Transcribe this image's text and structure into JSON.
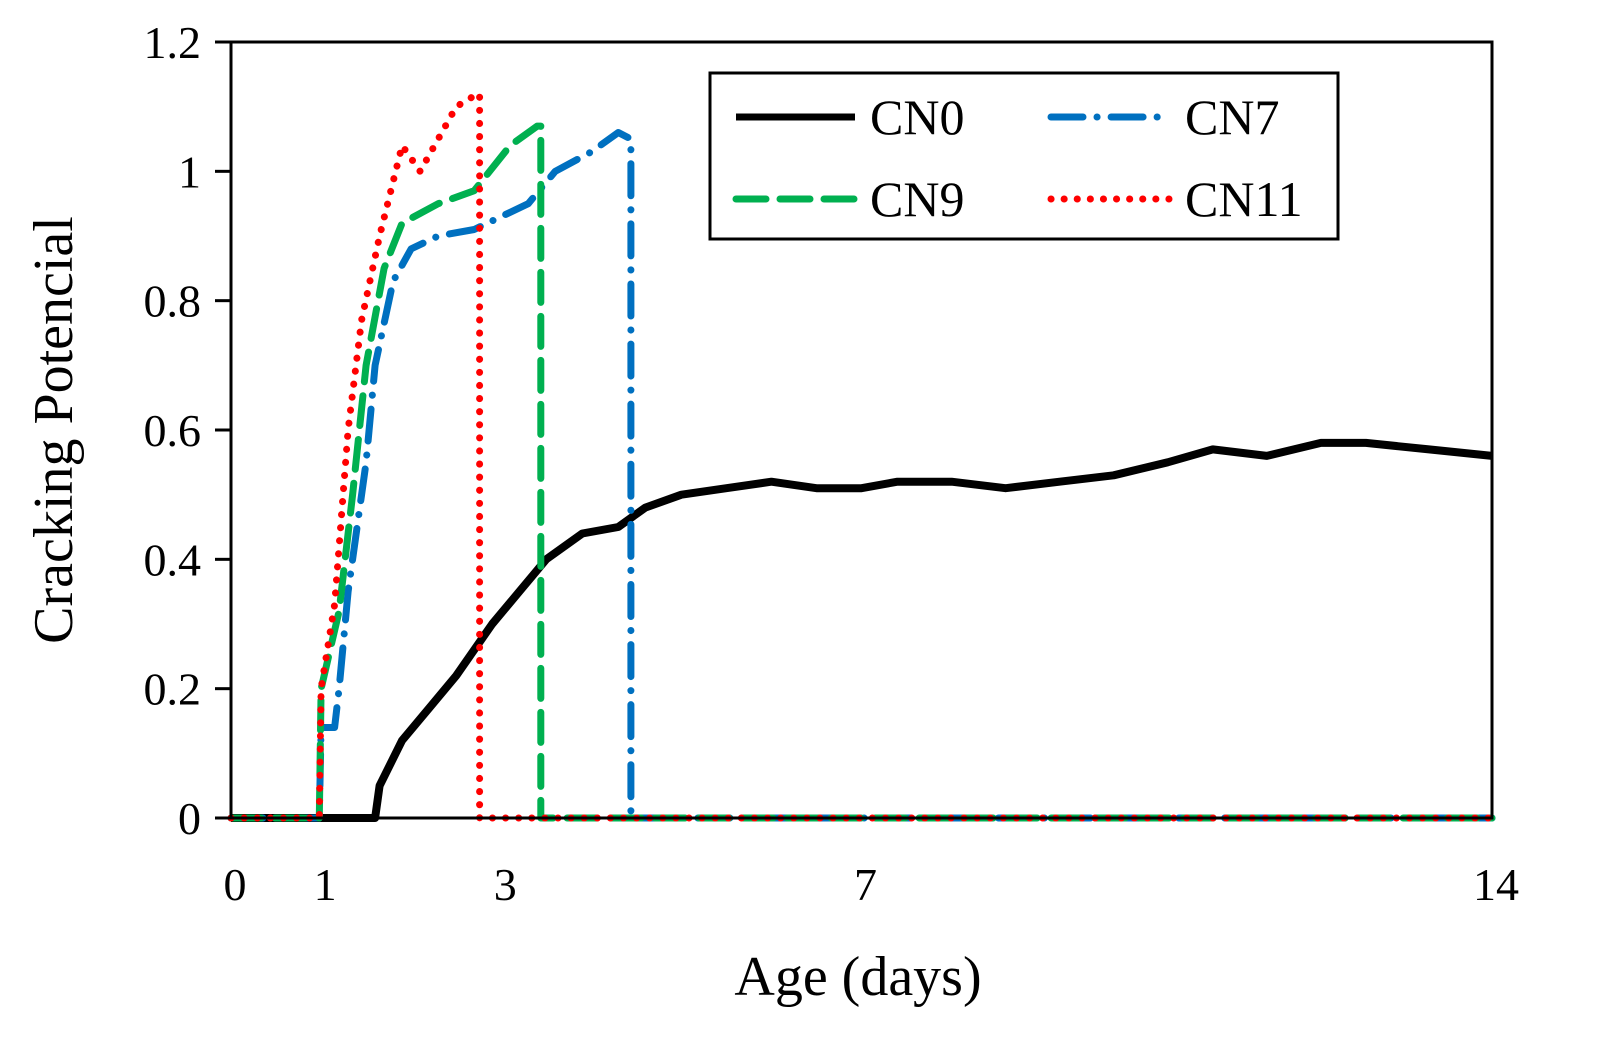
{
  "chart_data": {
    "type": "line",
    "title": "",
    "xlabel": "Age (days)",
    "ylabel": "Cracking Potencial",
    "xlim": [
      0,
      14
    ],
    "ylim": [
      0,
      1.2
    ],
    "xticks": [
      0,
      1,
      3,
      7,
      14
    ],
    "xtick_labels": [
      "0",
      "1",
      "3",
      "7",
      "14"
    ],
    "yticks": [
      0,
      0.2,
      0.4,
      0.6,
      0.8,
      1,
      1.2
    ],
    "ytick_labels": [
      "0",
      "0.2",
      "0.4",
      "0.6",
      "0.8",
      "1",
      "1.2"
    ],
    "grid": false,
    "legend_position": "top-right",
    "series": [
      {
        "name": "CN0",
        "color": "#000000",
        "style": "solid",
        "points": [
          [
            0,
            0
          ],
          [
            1.6,
            0
          ],
          [
            1.65,
            0.05
          ],
          [
            1.9,
            0.12
          ],
          [
            2.2,
            0.17
          ],
          [
            2.5,
            0.22
          ],
          [
            2.9,
            0.3
          ],
          [
            3.2,
            0.35
          ],
          [
            3.5,
            0.4
          ],
          [
            3.9,
            0.44
          ],
          [
            4.3,
            0.45
          ],
          [
            4.6,
            0.48
          ],
          [
            5.0,
            0.5
          ],
          [
            5.5,
            0.51
          ],
          [
            6.0,
            0.52
          ],
          [
            6.5,
            0.51
          ],
          [
            7.0,
            0.51
          ],
          [
            7.4,
            0.52
          ],
          [
            8.0,
            0.52
          ],
          [
            8.6,
            0.51
          ],
          [
            9.2,
            0.52
          ],
          [
            9.8,
            0.53
          ],
          [
            10.4,
            0.55
          ],
          [
            10.9,
            0.57
          ],
          [
            11.5,
            0.56
          ],
          [
            12.1,
            0.58
          ],
          [
            12.6,
            0.58
          ],
          [
            13.3,
            0.57
          ],
          [
            14,
            0.56
          ]
        ]
      },
      {
        "name": "CN7",
        "color": "#0070C0",
        "style": "dashdot",
        "points": [
          [
            0,
            0
          ],
          [
            0.98,
            0
          ],
          [
            1.0,
            0.14
          ],
          [
            1.15,
            0.14
          ],
          [
            1.2,
            0.2
          ],
          [
            1.3,
            0.35
          ],
          [
            1.5,
            0.55
          ],
          [
            1.6,
            0.7
          ],
          [
            1.8,
            0.83
          ],
          [
            2.0,
            0.88
          ],
          [
            2.3,
            0.9
          ],
          [
            2.7,
            0.91
          ],
          [
            3.0,
            0.93
          ],
          [
            3.3,
            0.95
          ],
          [
            3.6,
            1.0
          ],
          [
            4.0,
            1.03
          ],
          [
            4.3,
            1.06
          ],
          [
            4.44,
            1.05
          ],
          [
            4.44,
            0
          ],
          [
            14,
            0
          ]
        ]
      },
      {
        "name": "CN9",
        "color": "#00B050",
        "style": "dashed",
        "points": [
          [
            0,
            0
          ],
          [
            0.98,
            0
          ],
          [
            1.0,
            0.2
          ],
          [
            1.2,
            0.32
          ],
          [
            1.35,
            0.5
          ],
          [
            1.5,
            0.7
          ],
          [
            1.7,
            0.85
          ],
          [
            1.9,
            0.92
          ],
          [
            2.3,
            0.95
          ],
          [
            2.7,
            0.97
          ],
          [
            3.1,
            1.04
          ],
          [
            3.4,
            1.07
          ],
          [
            3.44,
            1.07
          ],
          [
            3.44,
            0
          ],
          [
            14,
            0
          ]
        ]
      },
      {
        "name": "CN11",
        "color": "#FF0000",
        "style": "dotted",
        "points": [
          [
            0,
            0
          ],
          [
            0.98,
            0
          ],
          [
            1.0,
            0.2
          ],
          [
            1.15,
            0.33
          ],
          [
            1.3,
            0.6
          ],
          [
            1.45,
            0.77
          ],
          [
            1.65,
            0.9
          ],
          [
            1.9,
            1.04
          ],
          [
            2.1,
            1.0
          ],
          [
            2.3,
            1.05
          ],
          [
            2.5,
            1.1
          ],
          [
            2.74,
            1.12
          ],
          [
            2.76,
            1.12
          ],
          [
            2.76,
            0
          ],
          [
            14,
            0
          ]
        ]
      }
    ]
  }
}
